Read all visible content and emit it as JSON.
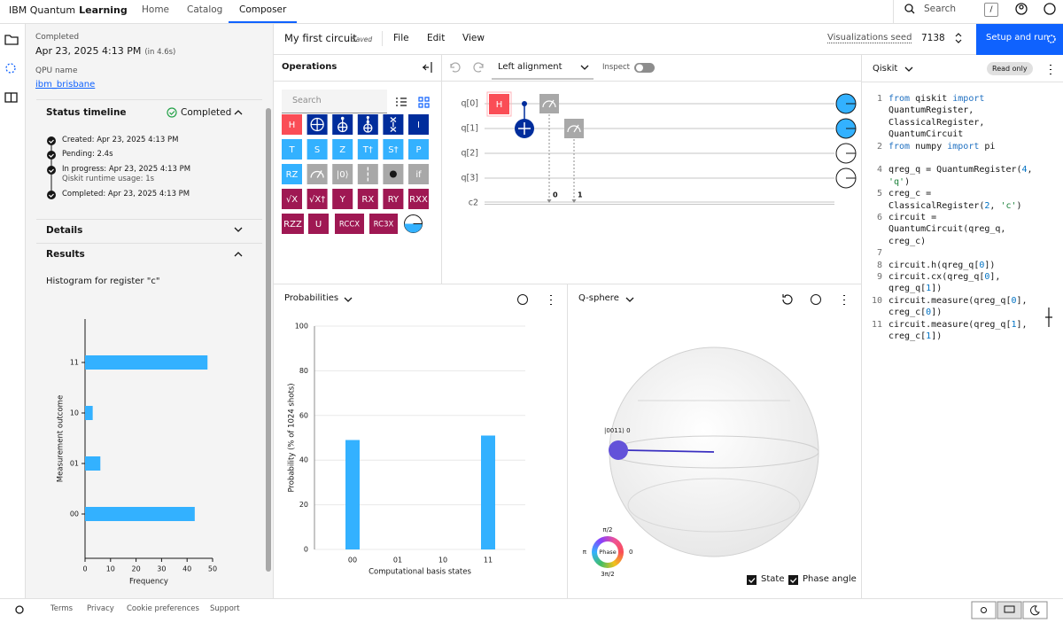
{
  "nav": {
    "brand": "IBM Quantum",
    "brand_strong": "Learning",
    "links": [
      "Home",
      "Catalog",
      "Composer"
    ],
    "active": 2,
    "search": "Search",
    "shortcut": "/"
  },
  "job": {
    "status": "Completed",
    "date": "Apr 23, 2025 4:13 PM",
    "duration": "(in 4.6s)",
    "qpu_label": "QPU name",
    "qpu": "ibm_brisbane",
    "timeline_title": "Status timeline",
    "timeline_status": "Completed",
    "timeline": [
      "Created: Apr 23, 2025 4:13 PM",
      "Pending: 2.4s",
      "In progress: Apr 23, 2025 4:13 PM",
      "Completed: Apr 23, 2025 4:13 PM"
    ],
    "runtime_usage": "Qiskit runtime usage: 1s",
    "details": "Details",
    "results": "Results"
  },
  "toolbar": {
    "circuit_name": "My first circuit",
    "saved": "Saved",
    "menus": [
      "File",
      "Edit",
      "View"
    ],
    "seed_label": "Visualizations seed",
    "seed": "7138",
    "run": "Setup and run"
  },
  "operations": {
    "title": "Operations",
    "search": "Search",
    "gates": [
      {
        "label": "H",
        "color": "#fa4d56"
      },
      {
        "color": "#002d9c"
      },
      {
        "color": "#002d9c"
      },
      {
        "color": "#002d9c"
      },
      {
        "color": "#002d9c"
      },
      {
        "label": "I",
        "color": "#002d9c"
      },
      {
        "label": "T",
        "color": "#33b1ff"
      },
      {
        "label": "S",
        "color": "#33b1ff"
      },
      {
        "label": "Z",
        "color": "#33b1ff"
      },
      {
        "label": "T†",
        "color": "#33b1ff"
      },
      {
        "label": "S†",
        "color": "#33b1ff"
      },
      {
        "label": "P",
        "color": "#33b1ff"
      },
      {
        "label": "RZ",
        "color": "#33b1ff"
      },
      {
        "color": "#a8a8a8"
      },
      {
        "label": "|0⟩",
        "color": "#a8a8a8"
      },
      {
        "color": "#a8a8a8"
      },
      {
        "color": "#a8a8a8"
      },
      {
        "label": "if",
        "color": "#a8a8a8"
      },
      {
        "label": "√X",
        "color": "#9f1853"
      },
      {
        "label": "√X†",
        "color": "#9f1853"
      },
      {
        "label": "Y",
        "color": "#9f1853"
      },
      {
        "label": "RX",
        "color": "#9f1853"
      },
      {
        "label": "RY",
        "color": "#9f1853"
      },
      {
        "label": "RXX",
        "color": "#9f1853"
      },
      {
        "label": "RZZ",
        "color": "#9f1853"
      },
      {
        "label": "U",
        "color": "#9f1853"
      },
      {
        "label": "RCCX",
        "color": "#9f1853"
      },
      {
        "label": "RC3X",
        "color": "#9f1853"
      },
      {
        "color": "#33b1ff"
      }
    ]
  },
  "circuit_tools": {
    "alignment": "Left alignment",
    "inspect": "Inspect"
  },
  "circuit": {
    "qubits": [
      "q[0]",
      "q[1]",
      "q[2]",
      "q[3]"
    ],
    "classical": "c2",
    "bits": [
      "0",
      "1"
    ]
  },
  "qsphere": {
    "title": "Q-sphere",
    "state_label": "|0011⟩ 0",
    "phase": "Phase",
    "phase_ticks": [
      "π/2",
      "π",
      "0",
      "3π/2"
    ],
    "options": [
      "State",
      "Phase angle"
    ]
  },
  "code": {
    "language": "Qiskit",
    "read_only": "Read only",
    "lines": [
      {
        "number": 1,
        "text": "from qiskit import QuantumRegister, ClassicalRegister, QuantumCircuit"
      },
      {
        "number": 2,
        "text": "from numpy import pi"
      },
      {
        "number": 4,
        "text": "qreg_q = QuantumRegister(4, 'q')"
      },
      {
        "number": 5,
        "text": "creg_c = ClassicalRegister(2, 'c')"
      },
      {
        "number": 6,
        "text": "circuit = QuantumCircuit(qreg_q, creg_c)"
      },
      {
        "number": 7
      },
      {
        "number": 8,
        "text": "circuit.h(qreg_q[0])"
      },
      {
        "number": 9,
        "text": "circuit.cx(qreg_q[0], qreg_q[1])"
      },
      {
        "number": 10,
        "text": "circuit.measure(qreg_q[0], creg_c[0])"
      },
      {
        "number": 11,
        "text": "circuit.measure(qreg_q[1], creg_c[1])"
      }
    ]
  },
  "footer": {
    "links": [
      "Terms",
      "Privacy",
      "Cookie preferences",
      "Support"
    ]
  },
  "chart_data": [
    {
      "type": "bar",
      "orientation": "horizontal",
      "title": "Histogram for register \"c\"",
      "x_label": "Frequency",
      "y_label": "Measurement outcome",
      "categories": [
        "00",
        "01",
        "10",
        "11"
      ],
      "values": [
        43,
        6,
        3,
        48
      ],
      "color": "#33b1ff",
      "xlim": [
        0,
        50
      ],
      "xticks": [
        0,
        10,
        20,
        30,
        40,
        50
      ]
    },
    {
      "type": "bar",
      "title": "Probabilities",
      "x_label": "Computational basis states",
      "y_label": "Probability (% of 1024 shots)",
      "categories": [
        "00",
        "01",
        "10",
        "11"
      ],
      "values": [
        49,
        0,
        0,
        51
      ],
      "color": "#33b1ff",
      "ylim": [
        0,
        100
      ],
      "yticks": [
        0,
        20,
        40,
        60,
        80,
        100
      ],
      "grid": true
    }
  ]
}
